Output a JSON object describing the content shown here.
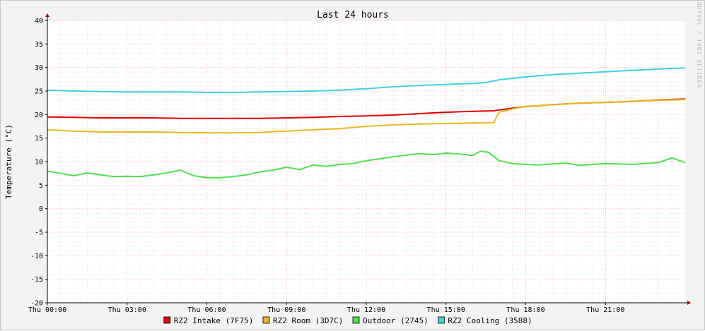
{
  "chart_data": {
    "type": "line",
    "title": "Last 24 hours",
    "ylabel": "Temperature (°C)",
    "watermark": "RRDTOOL / TOBI OETIKER",
    "ylim": [
      -20,
      40
    ],
    "yticks": [
      -20,
      -15,
      -10,
      -5,
      0,
      5,
      10,
      15,
      20,
      25,
      30,
      35,
      40
    ],
    "xlim": [
      0,
      24
    ],
    "xticks": [
      {
        "value": 0,
        "label": "Thu 00:00"
      },
      {
        "value": 3,
        "label": "Thu 03:00"
      },
      {
        "value": 6,
        "label": "Thu 06:00"
      },
      {
        "value": 9,
        "label": "Thu 09:00"
      },
      {
        "value": 12,
        "label": "Thu 12:00"
      },
      {
        "value": 15,
        "label": "Thu 15:00"
      },
      {
        "value": 18,
        "label": "Thu 18:00"
      },
      {
        "value": 21,
        "label": "Thu 21:00"
      }
    ],
    "grid": true,
    "legend_position": "bottom",
    "series": [
      {
        "name": "RZ2 Intake (7F75)",
        "color": "#e00000",
        "x": [
          0,
          1,
          2,
          3,
          4,
          5,
          6,
          7,
          8,
          9,
          10,
          11,
          12,
          13,
          14,
          15,
          16,
          16.8,
          17,
          18,
          19,
          20,
          21,
          22,
          23,
          24
        ],
        "y": [
          19.5,
          19.4,
          19.3,
          19.3,
          19.3,
          19.2,
          19.2,
          19.2,
          19.2,
          19.3,
          19.4,
          19.6,
          19.7,
          19.9,
          20.2,
          20.5,
          20.7,
          20.8,
          21.0,
          21.7,
          22.1,
          22.4,
          22.6,
          22.8,
          23.1,
          23.3
        ]
      },
      {
        "name": "RZ2 Room (3D7C)",
        "color": "#e8b820",
        "x": [
          0,
          1,
          2,
          3,
          4,
          5,
          6,
          7,
          8,
          9,
          10,
          11,
          12,
          13,
          14,
          15,
          16,
          16.8,
          16.9,
          17,
          17.5,
          18,
          19,
          20,
          21,
          22,
          23,
          24
        ],
        "y": [
          16.8,
          16.5,
          16.3,
          16.3,
          16.3,
          16.2,
          16.1,
          16.1,
          16.2,
          16.5,
          16.8,
          17.0,
          17.5,
          17.8,
          18.0,
          18.1,
          18.2,
          18.3,
          19.5,
          20.5,
          21.2,
          21.7,
          22.1,
          22.4,
          22.6,
          22.8,
          23.0,
          23.2
        ]
      },
      {
        "name": "Outdoor (2745)",
        "color": "#50e050",
        "x": [
          0,
          0.5,
          1,
          1.5,
          2,
          2.5,
          3,
          3.5,
          4,
          4.5,
          5,
          5.5,
          6,
          6.5,
          7,
          7.5,
          8,
          8.5,
          9,
          9.5,
          10,
          10.5,
          11,
          11.5,
          12,
          12.5,
          13,
          13.5,
          14,
          14.5,
          15,
          15.5,
          16,
          16.3,
          16.6,
          17,
          17.5,
          18,
          18.5,
          19,
          19.5,
          20,
          20.5,
          21,
          21.5,
          22,
          22.5,
          23,
          23.5,
          24
        ],
        "y": [
          8.0,
          7.5,
          7.0,
          7.6,
          7.2,
          6.8,
          6.9,
          6.8,
          7.2,
          7.6,
          8.2,
          7.0,
          6.6,
          6.6,
          6.8,
          7.2,
          7.8,
          8.2,
          8.8,
          8.3,
          9.3,
          9.0,
          9.4,
          9.6,
          10.2,
          10.6,
          11.0,
          11.4,
          11.7,
          11.5,
          11.8,
          11.6,
          11.3,
          12.2,
          12.0,
          10.2,
          9.6,
          9.4,
          9.3,
          9.5,
          9.7,
          9.2,
          9.4,
          9.6,
          9.5,
          9.4,
          9.6,
          9.8,
          10.8,
          9.8
        ]
      },
      {
        "name": "RZ2 Cooling (3588)",
        "color": "#40d0e0",
        "x": [
          0,
          1,
          2,
          3,
          4,
          5,
          6,
          7,
          8,
          9,
          10,
          11,
          12,
          13,
          14,
          15,
          16,
          16.5,
          17,
          18,
          19,
          20,
          21,
          22,
          23,
          24
        ],
        "y": [
          25.2,
          25.0,
          24.9,
          24.8,
          24.8,
          24.8,
          24.7,
          24.7,
          24.8,
          24.9,
          25.0,
          25.2,
          25.5,
          25.9,
          26.2,
          26.4,
          26.6,
          26.8,
          27.4,
          28.0,
          28.5,
          28.8,
          29.1,
          29.4,
          29.7,
          29.9
        ]
      }
    ]
  }
}
